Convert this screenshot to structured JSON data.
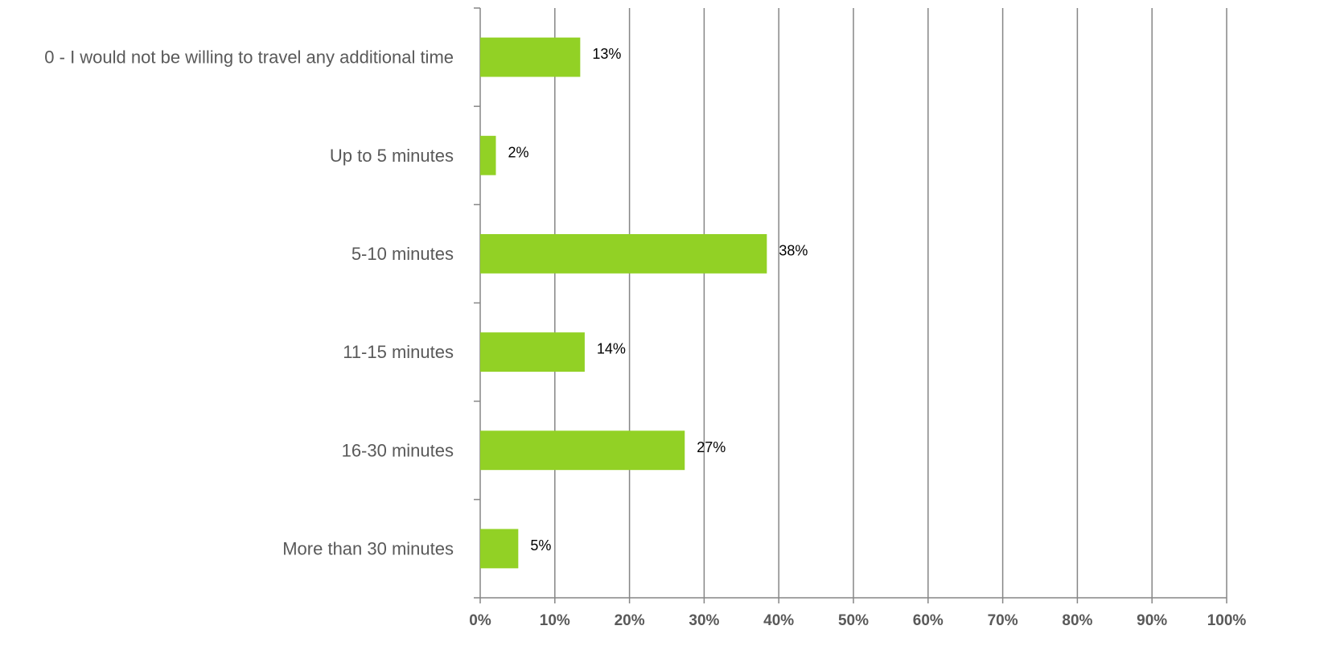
{
  "chart_data": {
    "type": "bar",
    "orientation": "horizontal",
    "title": "",
    "xlabel": "",
    "ylabel": "",
    "categories": [
      "0 - I would not be willing to travel any additional time",
      "Up to 5 minutes",
      "5-10 minutes",
      "11-15 minutes",
      "16-30 minutes",
      "More than 30 minutes"
    ],
    "values": [
      13.4,
      2.1,
      38.4,
      14.0,
      27.4,
      5.1
    ],
    "value_labels": [
      "13%",
      "2%",
      "38%",
      "14%",
      "27%",
      "5%"
    ],
    "xlim": [
      0,
      100
    ],
    "x_ticks": [
      0,
      10,
      20,
      30,
      40,
      50,
      60,
      70,
      80,
      90,
      100
    ],
    "x_tick_labels": [
      "0%",
      "10%",
      "20%",
      "30%",
      "40%",
      "50%",
      "60%",
      "70%",
      "80%",
      "90%",
      "100%"
    ],
    "grid": "vertical",
    "legend": "none",
    "colors": {
      "bar": "#92d125",
      "grid": "#868686",
      "axis": "#868686",
      "category_text": "#595959",
      "value_text": "#000000",
      "tick_text": "#595959"
    }
  }
}
